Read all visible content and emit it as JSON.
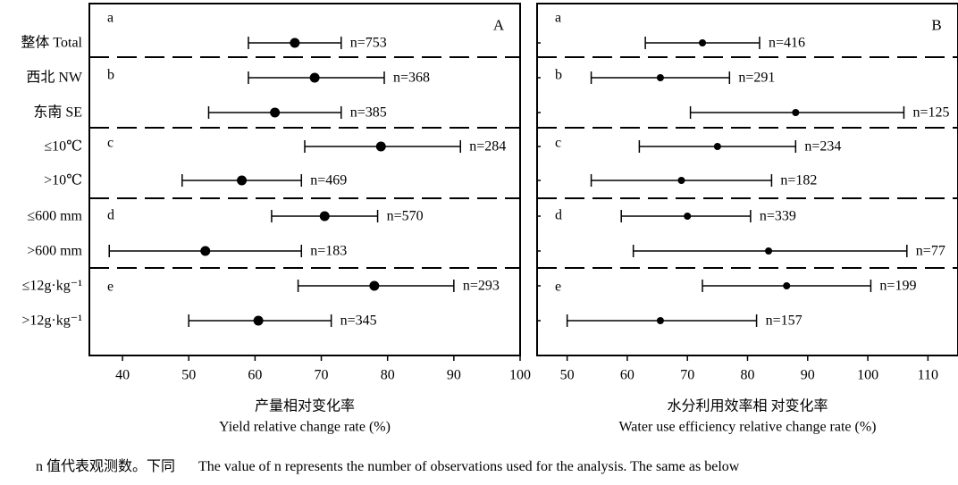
{
  "chart_data": [
    {
      "type": "scatter",
      "panel_letter": "A",
      "xlim": [
        35,
        100
      ],
      "xticks": [
        40,
        50,
        60,
        70,
        80,
        90,
        100
      ],
      "xlabel_cn": "产量相对变化率",
      "xlabel_en": "Yield relative change rate (%)",
      "groups": [
        {
          "letter": "a",
          "rows": [
            {
              "label": "整体 Total",
              "mean": 66,
              "low": 59,
              "high": 73,
              "n": "n=753"
            }
          ]
        },
        {
          "letter": "b",
          "rows": [
            {
              "label": "西北 NW",
              "mean": 69,
              "low": 59,
              "high": 79.5,
              "n": "n=368"
            },
            {
              "label": "东南 SE",
              "mean": 63,
              "low": 53,
              "high": 73,
              "n": "n=385"
            }
          ]
        },
        {
          "letter": "c",
          "rows": [
            {
              "label": "≤10℃",
              "mean": 79,
              "low": 67.5,
              "high": 91,
              "n": "n=284"
            },
            {
              "label": ">10℃",
              "mean": 58,
              "low": 49,
              "high": 67,
              "n": "n=469"
            }
          ]
        },
        {
          "letter": "d",
          "rows": [
            {
              "label": "≤600 mm",
              "mean": 70.5,
              "low": 62.5,
              "high": 78.5,
              "n": "n=570"
            },
            {
              "label": ">600 mm",
              "mean": 52.5,
              "low": 38,
              "high": 67,
              "n": "n=183"
            }
          ]
        },
        {
          "letter": "e",
          "rows": [
            {
              "label": "≤12g·kg⁻¹",
              "mean": 78,
              "low": 66.5,
              "high": 90,
              "n": "n=293"
            },
            {
              "label": ">12g·kg⁻¹",
              "mean": 60.5,
              "low": 50,
              "high": 71.5,
              "n": "n=345"
            }
          ]
        }
      ]
    },
    {
      "type": "scatter",
      "panel_letter": "B",
      "xlim": [
        45,
        115
      ],
      "xticks": [
        50,
        60,
        70,
        80,
        90,
        100,
        110
      ],
      "xlabel_cn": "水分利用效率相 对变化率",
      "xlabel_en": "Water use efficiency relative change rate (%)",
      "groups": [
        {
          "letter": "a",
          "rows": [
            {
              "mean": 72.5,
              "low": 63,
              "high": 82,
              "n": "n=416"
            }
          ]
        },
        {
          "letter": "b",
          "rows": [
            {
              "mean": 65.5,
              "low": 54,
              "high": 77,
              "n": "n=291"
            },
            {
              "mean": 88,
              "low": 70.5,
              "high": 106,
              "n": "n=125"
            }
          ]
        },
        {
          "letter": "c",
          "rows": [
            {
              "mean": 75,
              "low": 62,
              "high": 88,
              "n": "n=234"
            },
            {
              "mean": 69,
              "low": 54,
              "high": 84,
              "n": "n=182"
            }
          ]
        },
        {
          "letter": "d",
          "rows": [
            {
              "mean": 70,
              "low": 59,
              "high": 80.5,
              "n": "n=339"
            },
            {
              "mean": 83.5,
              "low": 61,
              "high": 106.5,
              "n": "n=77"
            }
          ]
        },
        {
          "letter": "e",
          "rows": [
            {
              "mean": 86.5,
              "low": 72.5,
              "high": 100.5,
              "n": "n=199"
            },
            {
              "mean": 65.5,
              "low": 50,
              "high": 81.5,
              "n": "n=157"
            }
          ]
        }
      ]
    }
  ],
  "caption": {
    "cn": "n 值代表观测数。下同",
    "en": "The value of n represents the number of observations used for the analysis. The same as below"
  }
}
